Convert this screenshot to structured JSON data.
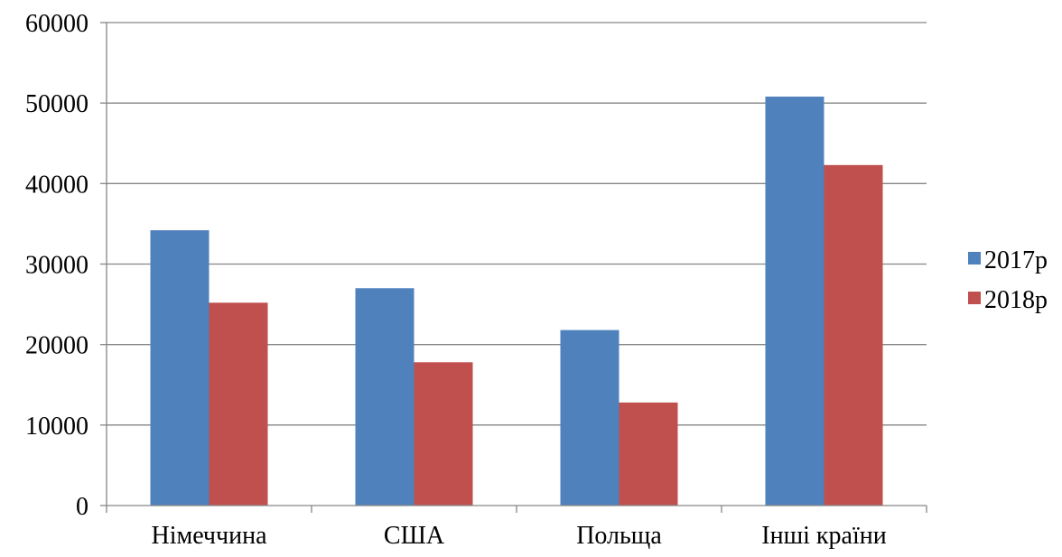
{
  "chart_data": {
    "type": "bar",
    "categories": [
      "Німеччина",
      "США",
      "Польща",
      "Інші країни"
    ],
    "series": [
      {
        "name": "2017р",
        "values": [
          34200,
          27000,
          21800,
          50800
        ],
        "color": "#4f81bd"
      },
      {
        "name": "2018р",
        "values": [
          25200,
          17800,
          12800,
          42300
        ],
        "color": "#c0504d"
      }
    ],
    "ylim": [
      0,
      60000
    ],
    "yticks": [
      "0",
      "10000",
      "20000",
      "30000",
      "40000",
      "50000",
      "60000"
    ],
    "grid": true,
    "legend_position": "right",
    "title": "",
    "xlabel": "",
    "ylabel": ""
  },
  "style": {
    "grid_color": "#868686",
    "axis_color": "#868686"
  }
}
